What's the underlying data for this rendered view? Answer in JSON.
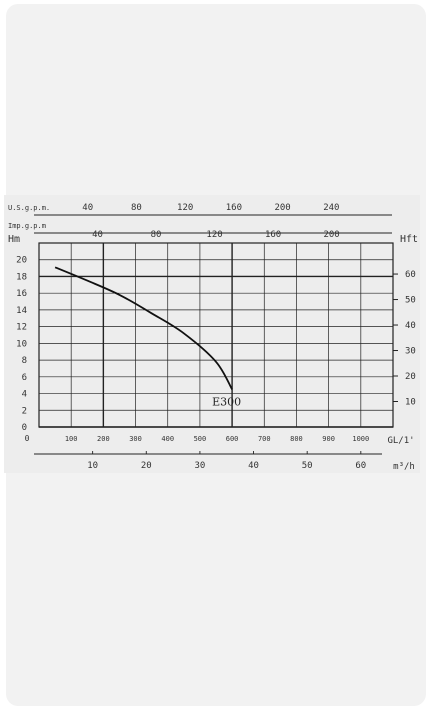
{
  "chart_data": {
    "type": "line",
    "curve_label": "E300",
    "y_left": {
      "unit": "Hm",
      "ticks": [
        "0",
        "2",
        "4",
        "6",
        "8",
        "10",
        "12",
        "14",
        "16",
        "18",
        "20"
      ],
      "ylim": [
        0,
        22
      ]
    },
    "y_right": {
      "unit": "Hft",
      "ticks": [
        "10",
        "20",
        "30",
        "40",
        "50",
        "60"
      ]
    },
    "x_primary": {
      "unit": "GL/1'",
      "ticks": [
        "100",
        "200",
        "300",
        "400",
        "500",
        "600",
        "700",
        "800",
        "900",
        "1000"
      ],
      "xlim": [
        0,
        1100
      ]
    },
    "x_m3h": {
      "unit": "m³/h",
      "ticks": [
        "10",
        "20",
        "30",
        "40",
        "50",
        "60"
      ]
    },
    "x_usgpm": {
      "unit": "U.S.g.p.m.",
      "ticks": [
        "40",
        "80",
        "120",
        "160",
        "200",
        "240"
      ]
    },
    "x_impgpm": {
      "unit": "Imp.g.p.m",
      "ticks": [
        "40",
        "80",
        "120",
        "160",
        "200"
      ]
    },
    "series": [
      {
        "name": "E300",
        "x": [
          50,
          150,
          250,
          350,
          450,
          550,
          600
        ],
        "y": [
          19.1,
          17.5,
          15.8,
          13.6,
          11.2,
          7.8,
          4.5
        ]
      }
    ]
  }
}
